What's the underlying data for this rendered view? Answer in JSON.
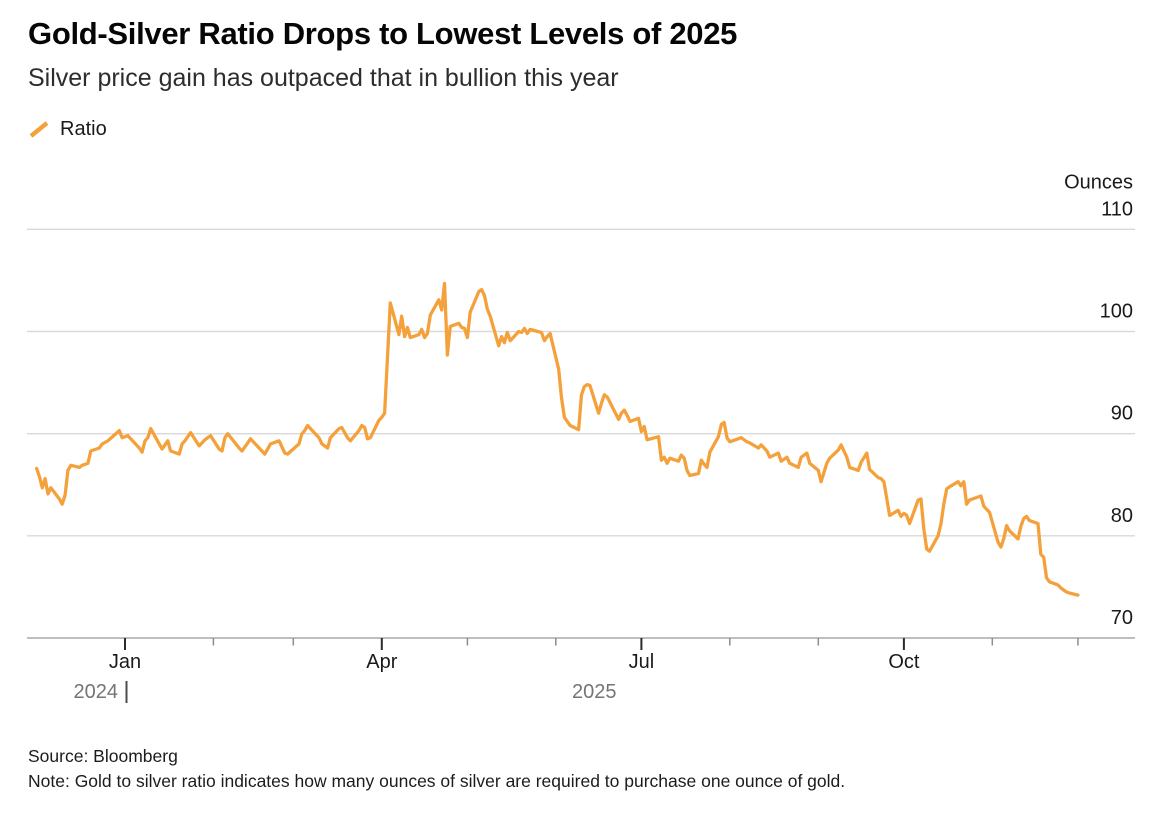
{
  "header": {
    "title": "Gold-Silver Ratio Drops to Lowest Levels of 2025",
    "subtitle": "Silver price gain has outpaced that in bullion this year"
  },
  "legend": {
    "series_label": "Ratio"
  },
  "colors": {
    "accent": "#F4A13C",
    "gridline": "#d9d9d9",
    "axis": "#969696",
    "major_tick": "#2b2b2b",
    "minor_tick": "#8d8d8d",
    "tick_label": "#1a1a1a",
    "year_label": "#757575",
    "year_divider": "#4c4c4c"
  },
  "footer": {
    "source": "Source: Bloomberg",
    "note": "Note: Gold to silver ratio indicates how many ounces of silver are required to purchase one ounce of gold."
  },
  "chart_data": {
    "type": "line",
    "title": "Gold-Silver Ratio Drops to Lowest Levels of 2025",
    "ylabel": "Ounces",
    "ylim": [
      70,
      110
    ],
    "yticks": [
      70,
      80,
      90,
      100,
      110
    ],
    "grid": true,
    "legend_position": "top-left",
    "x_range": [
      "2024-12-01",
      "2025-12-01"
    ],
    "xticks_major": [
      {
        "date": "2025-01-01",
        "label": "Jan"
      },
      {
        "date": "2025-04-01",
        "label": "Apr"
      },
      {
        "date": "2025-07-01",
        "label": "Jul"
      },
      {
        "date": "2025-10-01",
        "label": "Oct"
      }
    ],
    "xticks_minor": [
      "2025-02-01",
      "2025-03-01",
      "2025-05-01",
      "2025-06-01",
      "2025-08-01",
      "2025-09-01",
      "2025-11-01",
      "2025-12-01"
    ],
    "year_labels": [
      "2024",
      "2025"
    ],
    "series": [
      {
        "name": "Ratio",
        "color": "#F4A13C",
        "points": [
          [
            "2024-12-01",
            86.6
          ],
          [
            "2024-12-02",
            85.8
          ],
          [
            "2024-12-03",
            84.7
          ],
          [
            "2024-12-04",
            85.6
          ],
          [
            "2024-12-05",
            84.1
          ],
          [
            "2024-12-06",
            84.7
          ],
          [
            "2024-12-09",
            83.6
          ],
          [
            "2024-12-10",
            83.1
          ],
          [
            "2024-12-11",
            84.0
          ],
          [
            "2024-12-12",
            86.4
          ],
          [
            "2024-12-13",
            86.9
          ],
          [
            "2024-12-16",
            86.7
          ],
          [
            "2024-12-17",
            86.9
          ],
          [
            "2024-12-18",
            87.0
          ],
          [
            "2024-12-19",
            87.1
          ],
          [
            "2024-12-20",
            88.3
          ],
          [
            "2024-12-23",
            88.6
          ],
          [
            "2024-12-24",
            89.0
          ],
          [
            "2024-12-26",
            89.3
          ],
          [
            "2024-12-30",
            90.3
          ],
          [
            "2024-12-31",
            89.6
          ],
          [
            "2025-01-02",
            89.8
          ],
          [
            "2025-01-06",
            88.6
          ],
          [
            "2025-01-07",
            88.2
          ],
          [
            "2025-01-08",
            89.3
          ],
          [
            "2025-01-09",
            89.6
          ],
          [
            "2025-01-10",
            90.5
          ],
          [
            "2025-01-13",
            89.0
          ],
          [
            "2025-01-14",
            88.5
          ],
          [
            "2025-01-16",
            89.3
          ],
          [
            "2025-01-17",
            88.3
          ],
          [
            "2025-01-20",
            88.0
          ],
          [
            "2025-01-21",
            89.0
          ],
          [
            "2025-01-22",
            89.3
          ],
          [
            "2025-01-24",
            90.1
          ],
          [
            "2025-01-27",
            88.8
          ],
          [
            "2025-01-29",
            89.4
          ],
          [
            "2025-01-30",
            89.6
          ],
          [
            "2025-01-31",
            89.8
          ],
          [
            "2025-02-03",
            88.5
          ],
          [
            "2025-02-04",
            88.3
          ],
          [
            "2025-02-05",
            89.6
          ],
          [
            "2025-02-06",
            90.0
          ],
          [
            "2025-02-10",
            88.6
          ],
          [
            "2025-02-11",
            88.3
          ],
          [
            "2025-02-13",
            89.1
          ],
          [
            "2025-02-14",
            89.5
          ],
          [
            "2025-02-18",
            88.3
          ],
          [
            "2025-02-19",
            88.0
          ],
          [
            "2025-02-21",
            89.0
          ],
          [
            "2025-02-24",
            89.3
          ],
          [
            "2025-02-26",
            88.1
          ],
          [
            "2025-02-27",
            88.0
          ],
          [
            "2025-03-03",
            89.0
          ],
          [
            "2025-03-04",
            90.0
          ],
          [
            "2025-03-05",
            90.3
          ],
          [
            "2025-03-06",
            90.8
          ],
          [
            "2025-03-10",
            89.6
          ],
          [
            "2025-03-11",
            89.0
          ],
          [
            "2025-03-13",
            88.6
          ],
          [
            "2025-03-14",
            89.6
          ],
          [
            "2025-03-17",
            90.5
          ],
          [
            "2025-03-18",
            90.6
          ],
          [
            "2025-03-20",
            89.6
          ],
          [
            "2025-03-21",
            89.3
          ],
          [
            "2025-03-24",
            90.3
          ],
          [
            "2025-03-25",
            90.8
          ],
          [
            "2025-03-26",
            90.6
          ],
          [
            "2025-03-27",
            89.5
          ],
          [
            "2025-03-28",
            89.6
          ],
          [
            "2025-03-31",
            91.3
          ],
          [
            "2025-04-01",
            91.6
          ],
          [
            "2025-04-02",
            92.0
          ],
          [
            "2025-04-03",
            97.5
          ],
          [
            "2025-04-04",
            102.8
          ],
          [
            "2025-04-07",
            99.7
          ],
          [
            "2025-04-08",
            101.5
          ],
          [
            "2025-04-09",
            99.5
          ],
          [
            "2025-04-10",
            100.4
          ],
          [
            "2025-04-11",
            99.4
          ],
          [
            "2025-04-14",
            99.7
          ],
          [
            "2025-04-15",
            100.2
          ],
          [
            "2025-04-16",
            99.4
          ],
          [
            "2025-04-17",
            99.8
          ],
          [
            "2025-04-18",
            101.6
          ],
          [
            "2025-04-21",
            103.1
          ],
          [
            "2025-04-22",
            102.1
          ],
          [
            "2025-04-23",
            104.7
          ],
          [
            "2025-04-24",
            97.7
          ],
          [
            "2025-04-25",
            100.5
          ],
          [
            "2025-04-28",
            100.8
          ],
          [
            "2025-04-29",
            100.4
          ],
          [
            "2025-04-30",
            100.3
          ],
          [
            "2025-05-01",
            99.4
          ],
          [
            "2025-05-02",
            101.9
          ],
          [
            "2025-05-05",
            103.9
          ],
          [
            "2025-05-06",
            104.1
          ],
          [
            "2025-05-07",
            103.5
          ],
          [
            "2025-05-08",
            102.2
          ],
          [
            "2025-05-09",
            101.5
          ],
          [
            "2025-05-12",
            98.6
          ],
          [
            "2025-05-13",
            99.5
          ],
          [
            "2025-05-14",
            98.9
          ],
          [
            "2025-05-15",
            99.9
          ],
          [
            "2025-05-16",
            99.1
          ],
          [
            "2025-05-19",
            100.0
          ],
          [
            "2025-05-20",
            99.9
          ],
          [
            "2025-05-21",
            100.3
          ],
          [
            "2025-05-22",
            99.8
          ],
          [
            "2025-05-23",
            100.2
          ],
          [
            "2025-05-27",
            99.9
          ],
          [
            "2025-05-28",
            99.1
          ],
          [
            "2025-05-29",
            99.5
          ],
          [
            "2025-05-30",
            99.8
          ],
          [
            "2025-06-02",
            96.3
          ],
          [
            "2025-06-03",
            93.5
          ],
          [
            "2025-06-04",
            91.6
          ],
          [
            "2025-06-05",
            91.2
          ],
          [
            "2025-06-06",
            90.8
          ],
          [
            "2025-06-09",
            90.4
          ],
          [
            "2025-06-10",
            93.8
          ],
          [
            "2025-06-11",
            94.6
          ],
          [
            "2025-06-12",
            94.8
          ],
          [
            "2025-06-13",
            94.7
          ],
          [
            "2025-06-16",
            92.0
          ],
          [
            "2025-06-17",
            93.0
          ],
          [
            "2025-06-18",
            93.8
          ],
          [
            "2025-06-19",
            93.6
          ],
          [
            "2025-06-23",
            91.4
          ],
          [
            "2025-06-24",
            92.0
          ],
          [
            "2025-06-25",
            92.3
          ],
          [
            "2025-06-26",
            91.8
          ],
          [
            "2025-06-27",
            91.2
          ],
          [
            "2025-06-30",
            91.5
          ],
          [
            "2025-07-01",
            90.2
          ],
          [
            "2025-07-02",
            90.7
          ],
          [
            "2025-07-03",
            89.4
          ],
          [
            "2025-07-07",
            89.7
          ],
          [
            "2025-07-08",
            87.4
          ],
          [
            "2025-07-09",
            87.7
          ],
          [
            "2025-07-10",
            87.1
          ],
          [
            "2025-07-11",
            87.6
          ],
          [
            "2025-07-14",
            87.3
          ],
          [
            "2025-07-15",
            87.9
          ],
          [
            "2025-07-16",
            87.6
          ],
          [
            "2025-07-17",
            86.4
          ],
          [
            "2025-07-18",
            85.9
          ],
          [
            "2025-07-21",
            86.1
          ],
          [
            "2025-07-22",
            87.4
          ],
          [
            "2025-07-23",
            87.0
          ],
          [
            "2025-07-24",
            86.7
          ],
          [
            "2025-07-25",
            88.2
          ],
          [
            "2025-07-28",
            89.7
          ],
          [
            "2025-07-29",
            90.9
          ],
          [
            "2025-07-30",
            91.1
          ],
          [
            "2025-07-31",
            89.6
          ],
          [
            "2025-08-01",
            89.2
          ],
          [
            "2025-08-05",
            89.6
          ],
          [
            "2025-08-07",
            89.2
          ],
          [
            "2025-08-08",
            89.1
          ],
          [
            "2025-08-11",
            88.6
          ],
          [
            "2025-08-12",
            88.9
          ],
          [
            "2025-08-14",
            88.3
          ],
          [
            "2025-08-15",
            87.7
          ],
          [
            "2025-08-18",
            88.1
          ],
          [
            "2025-08-19",
            87.3
          ],
          [
            "2025-08-21",
            87.7
          ],
          [
            "2025-08-22",
            87.1
          ],
          [
            "2025-08-25",
            86.7
          ],
          [
            "2025-08-26",
            87.7
          ],
          [
            "2025-08-28",
            88.1
          ],
          [
            "2025-08-29",
            87.1
          ],
          [
            "2025-09-01",
            86.4
          ],
          [
            "2025-09-02",
            85.3
          ],
          [
            "2025-09-04",
            87.1
          ],
          [
            "2025-09-05",
            87.6
          ],
          [
            "2025-09-08",
            88.4
          ],
          [
            "2025-09-09",
            88.9
          ],
          [
            "2025-09-11",
            87.7
          ],
          [
            "2025-09-12",
            86.7
          ],
          [
            "2025-09-15",
            86.4
          ],
          [
            "2025-09-16",
            87.2
          ],
          [
            "2025-09-18",
            88.1
          ],
          [
            "2025-09-19",
            86.5
          ],
          [
            "2025-09-22",
            85.7
          ],
          [
            "2025-09-23",
            85.6
          ],
          [
            "2025-09-24",
            85.3
          ],
          [
            "2025-09-26",
            82.0
          ],
          [
            "2025-09-29",
            82.5
          ],
          [
            "2025-09-30",
            81.9
          ],
          [
            "2025-10-01",
            82.2
          ],
          [
            "2025-10-02",
            82.0
          ],
          [
            "2025-10-03",
            81.2
          ],
          [
            "2025-10-06",
            83.5
          ],
          [
            "2025-10-07",
            83.6
          ],
          [
            "2025-10-08",
            80.7
          ],
          [
            "2025-10-09",
            78.7
          ],
          [
            "2025-10-10",
            78.5
          ],
          [
            "2025-10-13",
            80.0
          ],
          [
            "2025-10-14",
            81.2
          ],
          [
            "2025-10-15",
            83.1
          ],
          [
            "2025-10-16",
            84.6
          ],
          [
            "2025-10-17",
            84.8
          ],
          [
            "2025-10-20",
            85.3
          ],
          [
            "2025-10-21",
            84.9
          ],
          [
            "2025-10-22",
            85.3
          ],
          [
            "2025-10-23",
            83.1
          ],
          [
            "2025-10-24",
            83.5
          ],
          [
            "2025-10-27",
            83.8
          ],
          [
            "2025-10-28",
            83.9
          ],
          [
            "2025-10-29",
            82.9
          ],
          [
            "2025-10-30",
            82.6
          ],
          [
            "2025-10-31",
            82.3
          ],
          [
            "2025-11-03",
            79.4
          ],
          [
            "2025-11-04",
            78.9
          ],
          [
            "2025-11-05",
            79.7
          ],
          [
            "2025-11-06",
            81.0
          ],
          [
            "2025-11-07",
            80.5
          ],
          [
            "2025-11-10",
            79.7
          ],
          [
            "2025-11-11",
            80.9
          ],
          [
            "2025-11-12",
            81.7
          ],
          [
            "2025-11-13",
            81.9
          ],
          [
            "2025-11-14",
            81.5
          ],
          [
            "2025-11-17",
            81.2
          ],
          [
            "2025-11-18",
            78.2
          ],
          [
            "2025-11-19",
            77.9
          ],
          [
            "2025-11-20",
            75.9
          ],
          [
            "2025-11-21",
            75.5
          ],
          [
            "2025-11-24",
            75.2
          ],
          [
            "2025-11-25",
            74.9
          ],
          [
            "2025-11-26",
            74.7
          ],
          [
            "2025-11-27",
            74.5
          ],
          [
            "2025-11-28",
            74.4
          ],
          [
            "2025-12-01",
            74.2
          ]
        ]
      }
    ]
  }
}
